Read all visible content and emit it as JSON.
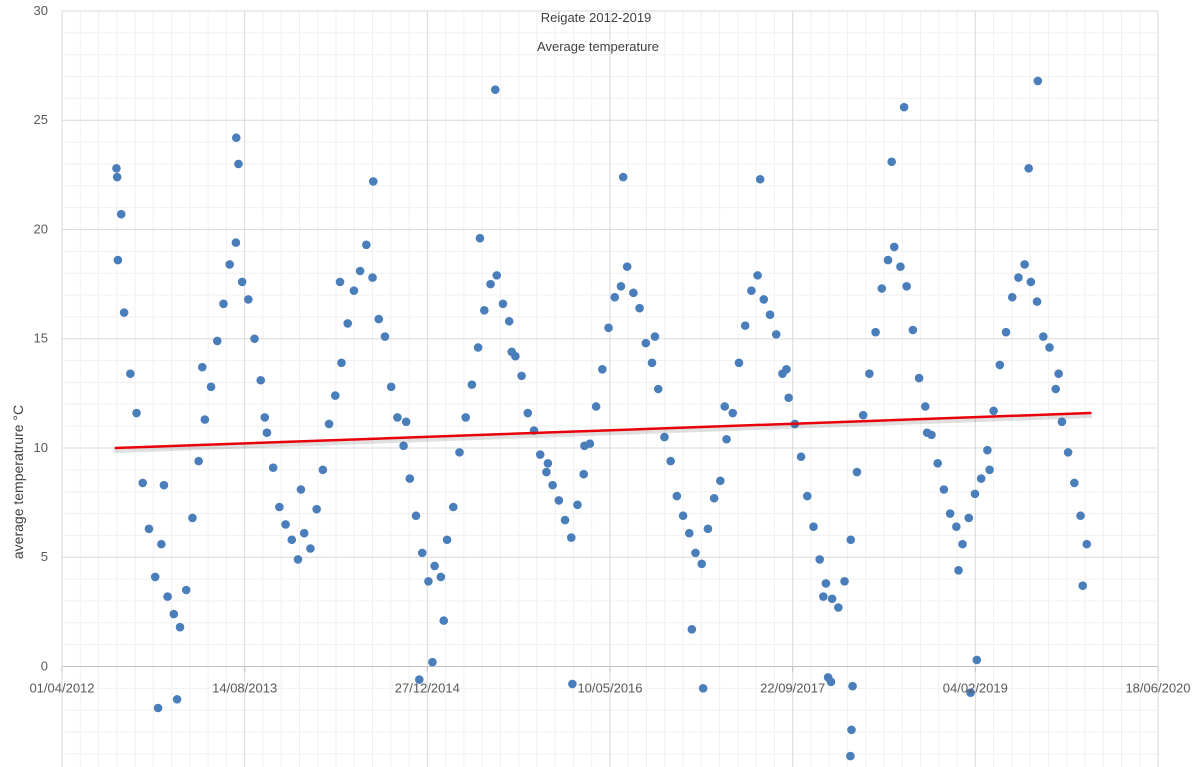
{
  "chart_data": {
    "type": "scatter",
    "title": "Reigate 2012-2019",
    "subtitle": "Average temperature",
    "xlabel": "",
    "ylabel": "average temperatrure °C",
    "x_tick_labels": [
      "01/04/2012",
      "14/08/2013",
      "27/12/2014",
      "10/05/2016",
      "22/09/2017",
      "04/02/2019",
      "18/06/2020"
    ],
    "x_ticks": [
      "2012-04-01",
      "2013-08-14",
      "2014-12-27",
      "2016-05-10",
      "2017-09-22",
      "2019-02-04",
      "2020-06-18"
    ],
    "xlim": [
      "2012-04-01",
      "2020-06-18"
    ],
    "y_ticks": [
      0,
      5,
      10,
      15,
      20,
      25,
      30
    ],
    "ylim": [
      -4.6,
      30
    ],
    "grid": true,
    "legend": "none",
    "series": [
      {
        "x": [
          "2012-09-01",
          "2012-09-18",
          "2012-10-05",
          "2012-10-22",
          "2012-11-08",
          "2012-11-25",
          "2012-12-12",
          "2012-12-29",
          "2013-01-15",
          "2013-02-01",
          "2013-02-18",
          "2013-03-07",
          "2013-03-24",
          "2013-04-10",
          "2013-04-27",
          "2013-05-14",
          "2013-05-31",
          "2013-06-17",
          "2013-07-04",
          "2013-07-21",
          "2013-08-07",
          "2013-08-24",
          "2013-09-10",
          "2013-09-27",
          "2013-10-14",
          "2013-10-31",
          "2013-11-17",
          "2013-12-04",
          "2013-12-21",
          "2014-01-07",
          "2014-01-24",
          "2014-02-10",
          "2014-02-27",
          "2014-03-16",
          "2014-04-02",
          "2014-04-19",
          "2014-05-06",
          "2014-05-23",
          "2014-06-09",
          "2014-06-26",
          "2014-07-13",
          "2014-07-30",
          "2014-08-16",
          "2014-09-02",
          "2014-09-19",
          "2014-10-06",
          "2014-10-23",
          "2014-11-09",
          "2014-11-26",
          "2014-12-13",
          "2014-12-30",
          "2015-01-16",
          "2015-02-02",
          "2015-02-19",
          "2015-03-08",
          "2015-03-25",
          "2015-04-11",
          "2015-04-28",
          "2015-05-15",
          "2015-06-01",
          "2015-06-18",
          "2015-07-05",
          "2015-07-22",
          "2015-08-08",
          "2015-08-25",
          "2015-09-11",
          "2015-09-28",
          "2015-10-15",
          "2015-11-01",
          "2015-11-18",
          "2015-12-05",
          "2015-12-22",
          "2016-01-08",
          "2016-01-25",
          "2016-02-11",
          "2016-02-28",
          "2016-03-16",
          "2016-04-02",
          "2016-04-19",
          "2016-05-06",
          "2016-05-23",
          "2016-06-09",
          "2016-06-26",
          "2016-07-13",
          "2016-07-30",
          "2016-08-16",
          "2016-09-02",
          "2016-09-19",
          "2016-10-06",
          "2016-10-23",
          "2016-11-09",
          "2016-11-26",
          "2016-12-13",
          "2016-12-30",
          "2017-01-16",
          "2017-02-02",
          "2017-02-19",
          "2017-03-08",
          "2017-03-25",
          "2017-04-11",
          "2017-04-28",
          "2017-05-15",
          "2017-06-01",
          "2017-06-18",
          "2017-07-05",
          "2017-07-22",
          "2017-08-08",
          "2017-08-25",
          "2017-09-11",
          "2017-09-28",
          "2017-10-15",
          "2017-11-01",
          "2017-11-18",
          "2017-12-05",
          "2017-12-22",
          "2018-01-08",
          "2018-01-25",
          "2018-02-11",
          "2018-02-28",
          "2018-03-17",
          "2018-04-03",
          "2018-04-20",
          "2018-05-07",
          "2018-05-24",
          "2018-06-10",
          "2018-06-27",
          "2018-07-14",
          "2018-07-31",
          "2018-08-17",
          "2018-09-03",
          "2018-09-20",
          "2018-10-07",
          "2018-10-24",
          "2018-11-10",
          "2018-11-27",
          "2018-12-14",
          "2018-12-31",
          "2019-01-17",
          "2019-02-03",
          "2019-02-20",
          "2019-03-09",
          "2019-03-26",
          "2019-04-12",
          "2019-04-29",
          "2019-05-16",
          "2019-06-02",
          "2019-06-19",
          "2019-07-06",
          "2019-07-23",
          "2019-08-09",
          "2019-08-26",
          "2019-09-12",
          "2019-09-29",
          "2019-10-16",
          "2019-11-02",
          "2019-11-19",
          "2019-12-06",
          "2012-09-10",
          "2013-01-05",
          "2013-04-20",
          "2013-07-28",
          "2013-10-08",
          "2014-01-15",
          "2014-05-02",
          "2014-08-01",
          "2014-10-30",
          "2015-02-10",
          "2015-05-20",
          "2015-08-15",
          "2015-11-22",
          "2016-03-01",
          "2016-06-15",
          "2016-09-10",
          "2016-12-20",
          "2017-03-20",
          "2017-06-25",
          "2017-09-05",
          "2017-12-15",
          "2018-03-05",
          "2018-06-20",
          "2018-09-25",
          "2018-12-20",
          "2019-03-15",
          "2019-06-30",
          "2019-09-20",
          "2019-11-25",
          "2012-12-20",
          "2013-02-10",
          "2014-12-05",
          "2015-01-10",
          "2016-01-28",
          "2017-01-20",
          "2017-12-28",
          "2018-01-05",
          "2018-02-27",
          "2018-03-02",
          "2019-01-22",
          "2019-02-08",
          "2015-07-01",
          "2019-07-25",
          "2018-07-24",
          "2013-07-22",
          "2012-08-30",
          "2012-08-28"
        ],
        "y": [
          18.6,
          16.2,
          13.4,
          11.6,
          8.4,
          6.3,
          4.1,
          5.6,
          3.2,
          2.4,
          1.8,
          3.5,
          6.8,
          9.4,
          11.3,
          12.8,
          14.9,
          16.6,
          18.4,
          19.4,
          17.6,
          16.8,
          15.0,
          13.1,
          10.7,
          9.1,
          7.3,
          6.5,
          5.8,
          4.9,
          6.1,
          5.4,
          7.2,
          9.0,
          11.1,
          12.4,
          13.9,
          15.7,
          17.2,
          18.1,
          19.3,
          17.8,
          15.9,
          15.1,
          12.8,
          11.4,
          10.1,
          8.6,
          6.9,
          5.2,
          3.9,
          4.6,
          4.1,
          5.8,
          7.3,
          9.8,
          11.4,
          12.9,
          14.6,
          16.3,
          17.5,
          17.9,
          16.6,
          15.8,
          14.2,
          13.3,
          11.6,
          10.8,
          9.7,
          8.9,
          8.3,
          7.6,
          6.7,
          5.9,
          7.4,
          8.8,
          10.2,
          11.9,
          13.6,
          15.5,
          16.9,
          17.4,
          18.3,
          17.1,
          16.4,
          14.8,
          13.9,
          12.7,
          10.5,
          9.4,
          7.8,
          6.9,
          6.1,
          5.2,
          4.7,
          6.3,
          7.7,
          8.5,
          10.4,
          11.6,
          13.9,
          15.6,
          17.2,
          17.9,
          16.8,
          16.1,
          15.2,
          13.4,
          12.3,
          11.1,
          9.6,
          7.8,
          6.4,
          4.9,
          3.8,
          3.1,
          2.7,
          3.9,
          5.8,
          8.9,
          11.5,
          13.4,
          15.3,
          17.3,
          18.6,
          19.2,
          18.3,
          17.4,
          15.4,
          13.2,
          11.9,
          10.6,
          9.3,
          8.1,
          7.0,
          6.4,
          5.6,
          6.8,
          7.9,
          8.6,
          9.9,
          11.7,
          13.8,
          15.3,
          16.9,
          17.8,
          18.4,
          17.6,
          16.7,
          15.1,
          14.6,
          12.7,
          11.2,
          9.8,
          8.4,
          6.9,
          5.6,
          20.7,
          8.3,
          13.7,
          23.0,
          11.4,
          8.1,
          17.6,
          22.2,
          11.2,
          2.1,
          19.6,
          14.4,
          9.3,
          10.1,
          22.4,
          15.1,
          1.7,
          11.9,
          22.3,
          13.6,
          3.2,
          -0.9,
          23.1,
          10.7,
          4.4,
          9.0,
          22.8,
          13.4,
          3.7,
          -1.9,
          -1.5,
          -0.6,
          0.2,
          -0.8,
          -1.0,
          -0.5,
          -0.7,
          -4.1,
          -2.9,
          -1.2,
          0.3,
          26.4,
          26.8,
          25.6,
          24.2,
          22.4,
          22.8
        ],
        "color": "#4a7ebb"
      }
    ],
    "trendline": {
      "x": [
        "2012-08-26",
        "2019-12-16"
      ],
      "y": [
        10.0,
        11.6
      ],
      "color": "#e8000b"
    }
  }
}
